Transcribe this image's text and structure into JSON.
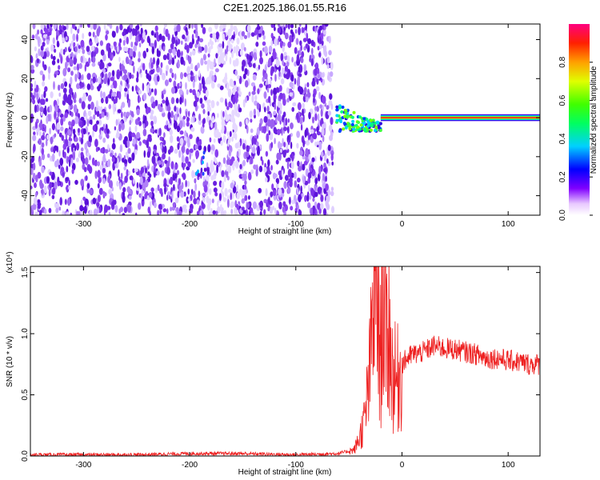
{
  "title": "C2E1.2025.186.01.55.R16",
  "chart_data": [
    {
      "type": "heatmap",
      "xlabel": "Height of straight line (km)",
      "ylabel": "Frequency (Hz)",
      "xlim": [
        -350,
        130
      ],
      "ylim": [
        -50,
        48
      ],
      "xticks": [
        -300,
        -200,
        -100,
        0,
        100
      ],
      "yticks": [
        -40,
        -20,
        0,
        20,
        40
      ],
      "colorbar": {
        "label": "Normalized spectral amplitude",
        "range": [
          0.0,
          1.0
        ],
        "ticks": [
          "0.0",
          "0.2",
          "0.4",
          "0.6",
          "0.8"
        ],
        "tick_values": [
          0.0,
          0.2,
          0.4,
          0.6,
          0.8
        ],
        "colormap": "rainbow (white/violet low to magenta high)"
      },
      "regions": [
        {
          "x": [
            -350,
            -65
          ],
          "y": [
            -50,
            48
          ],
          "description": "broadband noise",
          "amplitude_range": [
            0.0,
            0.15
          ]
        },
        {
          "x": [
            -65,
            130
          ],
          "y": [
            -2,
            2
          ],
          "description": "narrow line near 0 Hz",
          "amplitude_range": [
            0.35,
            1.0
          ]
        },
        {
          "x": [
            -195,
            -185
          ],
          "y": [
            -30,
            -15
          ],
          "description": "isolated cyan feature",
          "amplitude_range": [
            0.2,
            0.3
          ]
        }
      ],
      "colors": {
        "noise": "#7a30e0",
        "line_peak": "#ff2020"
      }
    },
    {
      "type": "line",
      "xlabel": "Height of straight line (km)",
      "ylabel": "SNR (10 * v/v)",
      "y_multiplier": "(x10⁴)",
      "xlim": [
        -350,
        130
      ],
      "ylim": [
        0,
        1.55
      ],
      "xticks": [
        -300,
        -200,
        -100,
        0,
        100
      ],
      "yticks": [
        "0.0",
        "0.5",
        "1.0",
        "1.5"
      ],
      "ytick_values": [
        0.0,
        0.5,
        1.0,
        1.5
      ],
      "series_color": "#ee2020",
      "x": [
        -350,
        -300,
        -250,
        -200,
        -150,
        -100,
        -60,
        -45,
        -40,
        -35,
        -30,
        -27,
        -24,
        -22,
        -20,
        -18,
        -15,
        -12,
        -10,
        -5,
        0,
        5,
        10,
        20,
        30,
        40,
        50,
        60,
        70,
        80,
        90,
        100,
        110,
        120,
        130
      ],
      "y": [
        0.01,
        0.01,
        0.01,
        0.02,
        0.02,
        0.01,
        0.02,
        0.05,
        0.15,
        0.3,
        0.7,
        1.3,
        1.55,
        1.0,
        0.8,
        1.4,
        0.9,
        1.1,
        0.7,
        0.6,
        0.75,
        0.8,
        0.83,
        0.85,
        0.9,
        0.88,
        0.87,
        0.85,
        0.83,
        0.8,
        0.8,
        0.78,
        0.77,
        0.75,
        0.75
      ]
    }
  ]
}
